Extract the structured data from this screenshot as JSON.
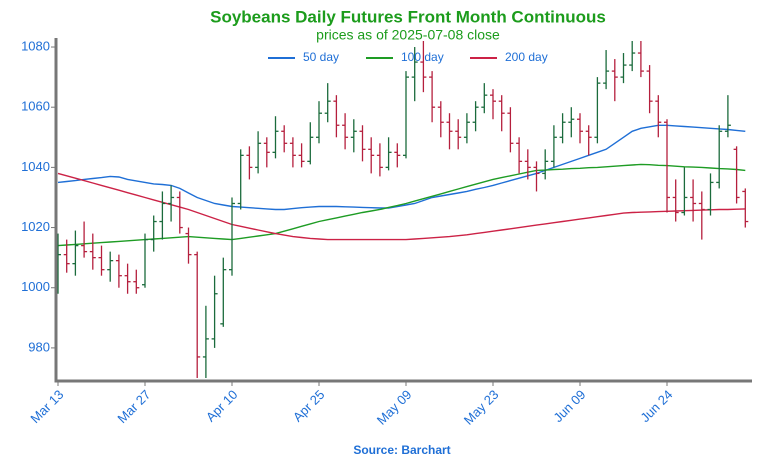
{
  "chart_data": {
    "type": "ohlc",
    "title": "Soybeans Daily Futures Front Month Continuous",
    "subtitle": "prices as of 2025-07-08 close",
    "source": "Source: Barchart",
    "categories": [
      "Mar 13",
      null,
      null,
      null,
      null,
      null,
      null,
      null,
      null,
      null,
      "Mar 27",
      null,
      null,
      null,
      null,
      null,
      null,
      null,
      null,
      null,
      "Apr 10",
      null,
      null,
      null,
      null,
      null,
      null,
      null,
      null,
      null,
      "Apr 25",
      null,
      null,
      null,
      null,
      null,
      null,
      null,
      null,
      null,
      "May 09",
      null,
      null,
      null,
      null,
      null,
      null,
      null,
      null,
      null,
      "May 23",
      null,
      null,
      null,
      null,
      null,
      null,
      null,
      null,
      null,
      "Jun 09",
      null,
      null,
      null,
      null,
      null,
      null,
      null,
      null,
      null,
      "Jun 24",
      null,
      null,
      null,
      null,
      null,
      null,
      null,
      null,
      null
    ],
    "ohlc": {
      "up_color": "#1b6b3c",
      "down_color": "#b51f3d",
      "open": [
        1004,
        1011,
        1008,
        1014,
        1012,
        1010,
        1006,
        1009,
        1004,
        1002,
        1001,
        1016,
        1022,
        1028,
        1030,
        1018,
        1011,
        977,
        983,
        988,
        1006,
        1028,
        1044,
        1040,
        1048,
        1045,
        1052,
        1048,
        1044,
        1042,
        1050,
        1058,
        1062,
        1054,
        1050,
        1052,
        1046,
        1044,
        1040,
        1045,
        1044,
        1070,
        1075,
        1070,
        1060,
        1055,
        1052,
        1050,
        1055,
        1060,
        1064,
        1062,
        1058,
        1048,
        1042,
        1040,
        1038,
        1042,
        1050,
        1055,
        1056,
        1052,
        1050,
        1068,
        1072,
        1070,
        1074,
        1078,
        1072,
        1062,
        1055,
        1030,
        1025,
        1030,
        1028,
        1026,
        1035,
        1052,
        1046,
        1032
      ],
      "high": [
        1018,
        1016,
        1019,
        1022,
        1018,
        1014,
        1012,
        1011,
        1008,
        1006,
        1018,
        1024,
        1032,
        1034,
        1032,
        1020,
        1012,
        994,
        1004,
        1010,
        1030,
        1046,
        1047,
        1052,
        1050,
        1057,
        1054,
        1050,
        1048,
        1055,
        1062,
        1068,
        1064,
        1058,
        1056,
        1054,
        1050,
        1048,
        1050,
        1048,
        1072,
        1080,
        1082,
        1072,
        1062,
        1058,
        1056,
        1058,
        1062,
        1068,
        1066,
        1064,
        1060,
        1050,
        1046,
        1042,
        1046,
        1054,
        1058,
        1060,
        1058,
        1054,
        1070,
        1079,
        1076,
        1078,
        1082,
        1082,
        1074,
        1064,
        1056,
        1036,
        1040,
        1036,
        1032,
        1038,
        1054,
        1064,
        1047,
        1033
      ],
      "low": [
        998,
        1005,
        1004,
        1010,
        1006,
        1004,
        1002,
        1000,
        998,
        998,
        1000,
        1012,
        1016,
        1022,
        1018,
        1008,
        970,
        970,
        980,
        987,
        1004,
        1026,
        1036,
        1038,
        1040,
        1043,
        1045,
        1040,
        1040,
        1041,
        1048,
        1055,
        1050,
        1046,
        1045,
        1042,
        1038,
        1037,
        1039,
        1040,
        1043,
        1062,
        1065,
        1055,
        1050,
        1046,
        1046,
        1048,
        1052,
        1058,
        1056,
        1052,
        1045,
        1038,
        1036,
        1032,
        1036,
        1040,
        1048,
        1050,
        1048,
        1044,
        1048,
        1066,
        1062,
        1068,
        1072,
        1070,
        1058,
        1050,
        1025,
        1022,
        1024,
        1022,
        1016,
        1024,
        1033,
        1050,
        1028,
        1020
      ],
      "close": [
        1011,
        1008,
        1014,
        1012,
        1010,
        1006,
        1009,
        1004,
        1002,
        1000,
        1016,
        1022,
        1028,
        1030,
        1020,
        1011,
        977,
        983,
        998,
        1006,
        1028,
        1044,
        1040,
        1048,
        1045,
        1052,
        1048,
        1044,
        1042,
        1050,
        1058,
        1062,
        1054,
        1050,
        1052,
        1046,
        1044,
        1040,
        1045,
        1044,
        1070,
        1075,
        1070,
        1060,
        1055,
        1052,
        1050,
        1055,
        1060,
        1064,
        1062,
        1058,
        1048,
        1042,
        1040,
        1038,
        1042,
        1050,
        1055,
        1056,
        1052,
        1050,
        1068,
        1072,
        1070,
        1074,
        1078,
        1072,
        1062,
        1055,
        1030,
        1025,
        1030,
        1028,
        1026,
        1035,
        1052,
        1054,
        1030,
        1022
      ]
    },
    "series": [
      {
        "name": "50 day",
        "color": "#1f6fd6",
        "values": [
          1035,
          1035.3,
          1035.6,
          1036,
          1036.3,
          1036.6,
          1037,
          1036.8,
          1036,
          1035.5,
          1035,
          1034.5,
          1034.3,
          1034,
          1033,
          1031.5,
          1030,
          1029,
          1028,
          1027.5,
          1027,
          1026.8,
          1026.6,
          1026.4,
          1026.2,
          1026,
          1026,
          1026.3,
          1026.6,
          1026.8,
          1027,
          1027,
          1027,
          1026.9,
          1026.8,
          1026.7,
          1026.6,
          1026.5,
          1026.5,
          1027,
          1027.5,
          1028,
          1029,
          1030,
          1030.5,
          1031,
          1031.5,
          1032,
          1032.7,
          1033.3,
          1034,
          1034.8,
          1035.6,
          1036.4,
          1037.2,
          1038,
          1039,
          1040,
          1041,
          1042,
          1043,
          1044,
          1045,
          1046,
          1048,
          1050,
          1052,
          1053,
          1053.5,
          1054,
          1054,
          1053.8,
          1053.6,
          1053.4,
          1053.2,
          1053,
          1052.8,
          1052.6,
          1052.3,
          1052
        ]
      },
      {
        "name": "100 day",
        "color": "#1e9c24",
        "values": [
          1014,
          1014.2,
          1014.4,
          1014.6,
          1014.8,
          1015,
          1015.2,
          1015.4,
          1015.6,
          1015.8,
          1016,
          1016.2,
          1016.4,
          1016.6,
          1016.8,
          1017,
          1016.8,
          1016.6,
          1016.4,
          1016.2,
          1016,
          1016.4,
          1016.8,
          1017.2,
          1017.6,
          1018,
          1018.8,
          1019.6,
          1020.4,
          1021.2,
          1022,
          1022.6,
          1023.2,
          1023.8,
          1024.4,
          1025,
          1025.5,
          1026,
          1026.7,
          1027.3,
          1028,
          1028.8,
          1029.6,
          1030.4,
          1031.2,
          1032,
          1032.8,
          1033.6,
          1034.4,
          1035.2,
          1036,
          1036.6,
          1037.2,
          1037.8,
          1038.4,
          1039,
          1039.1,
          1039.3,
          1039.4,
          1039.6,
          1039.7,
          1039.9,
          1040,
          1040.2,
          1040.4,
          1040.6,
          1040.8,
          1041,
          1040.9,
          1040.7,
          1040.6,
          1040.4,
          1040.2,
          1040.1,
          1040,
          1039.8,
          1039.6,
          1039.5,
          1039.3,
          1039
        ]
      },
      {
        "name": "200 day",
        "color": "#cc2246",
        "values": [
          1038,
          1037.2,
          1036.4,
          1035.6,
          1034.8,
          1034,
          1033.2,
          1032.4,
          1031.6,
          1030.8,
          1030,
          1029.2,
          1028.4,
          1027.6,
          1026.8,
          1026,
          1025,
          1024,
          1023,
          1022,
          1021,
          1020.4,
          1019.8,
          1019.2,
          1018.6,
          1018,
          1017.5,
          1017,
          1016.7,
          1016.4,
          1016.2,
          1016,
          1016,
          1016,
          1016,
          1016,
          1016,
          1016,
          1016,
          1016,
          1016,
          1016.2,
          1016.4,
          1016.6,
          1016.8,
          1017,
          1017.3,
          1017.6,
          1018,
          1018.4,
          1018.8,
          1019.2,
          1019.6,
          1020,
          1020.4,
          1020.8,
          1021.2,
          1021.6,
          1022,
          1022.4,
          1022.8,
          1023.2,
          1023.6,
          1024,
          1024.4,
          1024.8,
          1025,
          1025.1,
          1025.2,
          1025.3,
          1025.4,
          1025.5,
          1025.6,
          1025.7,
          1025.8,
          1025.9,
          1026,
          1026,
          1026.1,
          1026.2
        ]
      }
    ],
    "ylim": [
      969,
      1083
    ],
    "yticks": [
      980,
      1000,
      1020,
      1040,
      1060,
      1080
    ],
    "grid": false
  }
}
